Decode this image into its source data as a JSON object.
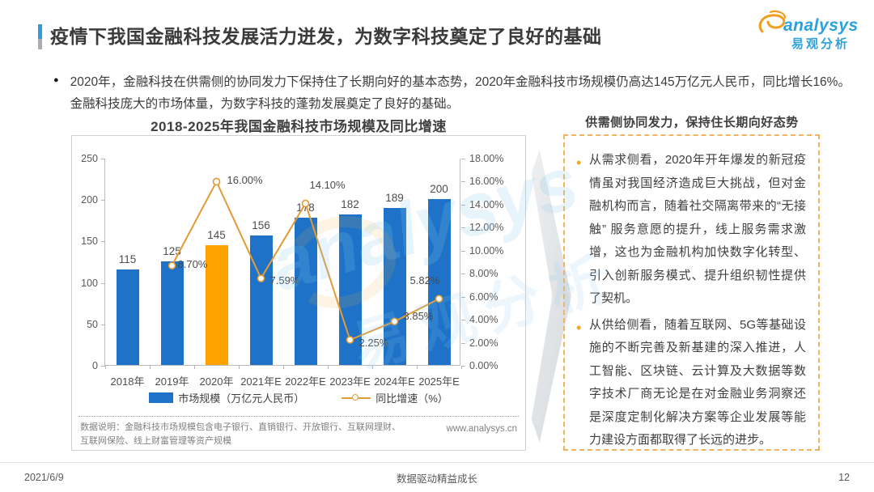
{
  "header": {
    "title": "疫情下我国金融科技发展活力迸发，为数字科技奠定了良好的基础",
    "logo": {
      "brand": "analysys",
      "brand_cn": "易观分析"
    }
  },
  "summary": {
    "text": "2020年，金融科技在供需侧的协同发力下保持住了长期向好的基本态势，2020年金融科技市场规模仍高达145万亿元人民币，同比增长16%。金融科技庞大的市场体量，为数字科技的蓬勃发展奠定了良好的基础。"
  },
  "chart_data": {
    "type": "bar+line",
    "title": "2018-2025年我国金融科技市场规模及同比增速",
    "categories": [
      "2018年",
      "2019年",
      "2020年",
      "2021年E",
      "2022年E",
      "2023年E",
      "2024年E",
      "2025年E"
    ],
    "series": [
      {
        "name": "市场规模（万亿元人民币）",
        "type": "bar",
        "axis": "left",
        "values": [
          115,
          125,
          145,
          156,
          178,
          182,
          189,
          200
        ],
        "highlight_index": 2
      },
      {
        "name": "同比增速（%）",
        "type": "line",
        "axis": "right",
        "values": [
          null,
          8.7,
          16.0,
          7.59,
          14.1,
          2.25,
          3.85,
          5.82
        ]
      }
    ],
    "left_axis": {
      "min": 0,
      "max": 250,
      "step": 50
    },
    "right_axis": {
      "min": 0,
      "max": 18,
      "step": 2,
      "decimals": 2,
      "suffix": "%"
    },
    "grid": false,
    "legend_position": "bottom",
    "colors": {
      "bar": "#1e73c8",
      "bar_highlight": "#ffa200",
      "line": "#e29b35"
    }
  },
  "chart_notes": {
    "footnote": "数据说明：金融科技市场规模包含电子银行、直销银行、开放银行、互联网理财、互联网保险、线上财富管理等资产规模",
    "site_url": "www.analysys.cn"
  },
  "insight_panel": {
    "title": "供需侧协同发力，保持住长期向好态势",
    "bullets": [
      "从需求侧看，2020年开年爆发的新冠疫情虽对我国经济造成巨大挑战，但对金融机构而言，随着社交隔离带来的“无接触” 服务意愿的提升，线上服务需求激增，这也为金融机构加快数字化转型、引入创新服务模式、提升组织韧性提供了契机。",
      "从供给侧看，随着互联网、5G等基础设施的不断完善及新基建的深入推进，人工智能、区块链、云计算及大数据等数字技术厂商无论是在对金融业务洞察还是深度定制化解决方案等企业发展等能力建设方面都取得了长远的进步。"
    ]
  },
  "watermark": {
    "text_en": "analysys",
    "text_cn": "易观分析"
  },
  "footer": {
    "date": "2021/6/9",
    "center": "数据驱动精益成长",
    "page": "12"
  }
}
